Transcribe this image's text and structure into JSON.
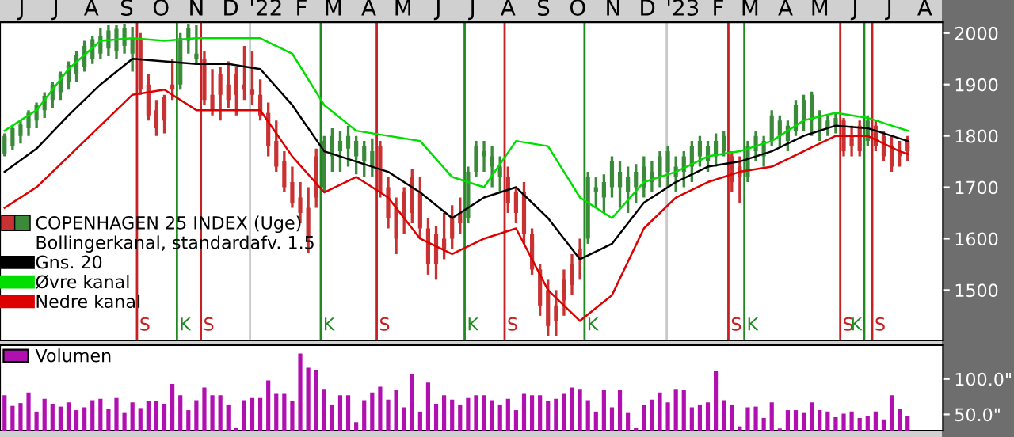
{
  "chart_data": [
    {
      "type": "candlestick",
      "title": "COPENHAGEN 25 INDEX (Uge)",
      "legend_title": "Bollingerkanal, standardafv. 1.5",
      "legend": "bottom left",
      "colors": [
        "#3a8a3a",
        "#3a8a3a",
        "#3a8a3a",
        "#3a8a3a",
        "#3a8a3a",
        "#3a8a3a",
        "#3a8a3a",
        "#3a8a3a",
        "#3a8a3a",
        "#3a8a3a",
        "#3a8a3a",
        "#3a8a3a",
        "#3a8a3a",
        "#3a8a3a",
        "#3a8a3a",
        "#3a8a3a",
        "#3a8a3a",
        "#c83232",
        "#c83232",
        "#c83232",
        "#c83232",
        "#c83232",
        "#3a8a3a",
        "#3a8a3a",
        "#3a8a3a",
        "#c83232",
        "#c83232",
        "#c83232",
        "#c83232",
        "#c83232",
        "#c83232",
        "#c83232",
        "#c83232",
        "#c83232",
        "#c83232",
        "#c83232",
        "#c83232",
        "#c83232",
        "#c83232",
        "#c83232",
        "#3a8a3a",
        "#3a8a3a",
        "#3a8a3a",
        "#3a8a3a",
        "#3a8a3a",
        "#3a8a3a",
        "#3a8a3a",
        "#c83232",
        "#c83232",
        "#c83232",
        "#c83232",
        "#c83232",
        "#c83232",
        "#c83232",
        "#c83232",
        "#c83232",
        "#c83232",
        "#c83232",
        "#3a8a3a",
        "#3a8a3a",
        "#3a8a3a",
        "#3a8a3a",
        "#3a8a3a",
        "#c83232",
        "#c83232",
        "#c83232",
        "#c83232",
        "#c83232",
        "#c83232",
        "#c83232",
        "#c83232",
        "#c83232",
        "#c83232",
        "#3a8a3a",
        "#3a8a3a",
        "#3a8a3a",
        "#3a8a3a",
        "#3a8a3a",
        "#3a8a3a",
        "#3a8a3a",
        "#3a8a3a",
        "#3a8a3a",
        "#3a8a3a",
        "#3a8a3a",
        "#3a8a3a",
        "#3a8a3a",
        "#3a8a3a",
        "#3a8a3a",
        "#3a8a3a",
        "#3a8a3a",
        "#3a8a3a",
        "#c83232",
        "#c83232",
        "#3a8a3a",
        "#3a8a3a",
        "#3a8a3a",
        "#3a8a3a",
        "#3a8a3a",
        "#3a8a3a",
        "#3a8a3a",
        "#3a8a3a",
        "#3a8a3a",
        "#3a8a3a",
        "#3a8a3a",
        "#3a8a3a",
        "#c83232",
        "#c83232",
        "#c83232",
        "#3a8a3a",
        "#c83232",
        "#c83232",
        "#c83232",
        "#c83232",
        "#c83232"
      ],
      "x": [
        "2021-05-31",
        "2021-06-07",
        "2021-06-14",
        "2021-06-21",
        "2021-06-28",
        "2021-07-05",
        "2021-07-12",
        "2021-07-19",
        "2021-07-26",
        "2021-08-02",
        "2021-08-09",
        "2021-08-16",
        "2021-08-23",
        "2021-08-30",
        "2021-09-06",
        "2021-09-13",
        "2021-09-20",
        "2021-09-27",
        "2021-10-04",
        "2021-10-11",
        "2021-10-18",
        "2021-10-25",
        "2021-11-01",
        "2021-11-08",
        "2021-11-15",
        "2021-11-22",
        "2021-11-29",
        "2021-12-06",
        "2021-12-13",
        "2021-12-20",
        "2021-12-27",
        "2022-01-03",
        "2022-01-10",
        "2022-01-17",
        "2022-01-24",
        "2022-01-31",
        "2022-02-07",
        "2022-02-14",
        "2022-02-21",
        "2022-02-28",
        "2022-03-07",
        "2022-03-14",
        "2022-03-21",
        "2022-03-28",
        "2022-04-04",
        "2022-04-11",
        "2022-04-18",
        "2022-04-25",
        "2022-05-02",
        "2022-05-09",
        "2022-05-16",
        "2022-05-23",
        "2022-05-30",
        "2022-06-06",
        "2022-06-13",
        "2022-06-20",
        "2022-06-27",
        "2022-07-04",
        "2022-07-11",
        "2022-07-18",
        "2022-07-25",
        "2022-08-01",
        "2022-08-08",
        "2022-08-15",
        "2022-08-22",
        "2022-08-29",
        "2022-09-05",
        "2022-09-12",
        "2022-09-19",
        "2022-09-26",
        "2022-10-03",
        "2022-10-10",
        "2022-10-17",
        "2022-10-24",
        "2022-10-31",
        "2022-11-07",
        "2022-11-14",
        "2022-11-21",
        "2022-11-28",
        "2022-12-05",
        "2022-12-12",
        "2022-12-19",
        "2022-12-26",
        "2023-01-02",
        "2023-01-09",
        "2023-01-16",
        "2023-01-23",
        "2023-01-30",
        "2023-02-06",
        "2023-02-13",
        "2023-02-20",
        "2023-02-27",
        "2023-03-06",
        "2023-03-13",
        "2023-03-20",
        "2023-03-27",
        "2023-04-03",
        "2023-04-10",
        "2023-04-17",
        "2023-04-24",
        "2023-05-01",
        "2023-05-08",
        "2023-05-15",
        "2023-05-22",
        "2023-05-29",
        "2023-06-05",
        "2023-06-12",
        "2023-06-19",
        "2023-06-26",
        "2023-07-03",
        "2023-07-10",
        "2023-07-17",
        "2023-07-24",
        "2023-07-31"
      ],
      "ohlc": [
        [
          1765,
          1805,
          1760,
          1800
        ],
        [
          1780,
          1820,
          1772,
          1815
        ],
        [
          1800,
          1830,
          1785,
          1822
        ],
        [
          1815,
          1850,
          1800,
          1845
        ],
        [
          1830,
          1865,
          1815,
          1860
        ],
        [
          1850,
          1885,
          1835,
          1878
        ],
        [
          1870,
          1905,
          1855,
          1900
        ],
        [
          1885,
          1925,
          1870,
          1920
        ],
        [
          1905,
          1945,
          1890,
          1938
        ],
        [
          1920,
          1965,
          1905,
          1958
        ],
        [
          1935,
          1985,
          1925,
          1975
        ],
        [
          1950,
          1995,
          1940,
          1988
        ],
        [
          1960,
          2010,
          1950,
          1995
        ],
        [
          1970,
          2015,
          1955,
          2005
        ],
        [
          1965,
          2015,
          1950,
          2008
        ],
        [
          1975,
          2018,
          1960,
          2010
        ],
        [
          1960,
          2012,
          1925,
          1990
        ],
        [
          1990,
          2000,
          1880,
          1890
        ],
        [
          1900,
          1920,
          1830,
          1840
        ],
        [
          1850,
          1870,
          1800,
          1815
        ],
        [
          1875,
          1880,
          1805,
          1830
        ],
        [
          1900,
          1950,
          1870,
          1890
        ],
        [
          1900,
          2000,
          1890,
          1990
        ],
        [
          1985,
          2018,
          1960,
          2010
        ],
        [
          1950,
          2015,
          1940,
          1960
        ],
        [
          1950,
          1965,
          1860,
          1870
        ],
        [
          1880,
          1930,
          1840,
          1850
        ],
        [
          1920,
          1935,
          1830,
          1880
        ],
        [
          1900,
          1945,
          1855,
          1870
        ],
        [
          1920,
          1935,
          1840,
          1880
        ],
        [
          1900,
          1975,
          1870,
          1890
        ],
        [
          1890,
          1965,
          1860,
          1880
        ],
        [
          1880,
          1910,
          1830,
          1840
        ],
        [
          1845,
          1865,
          1760,
          1780
        ],
        [
          1790,
          1830,
          1730,
          1740
        ],
        [
          1750,
          1770,
          1690,
          1700
        ],
        [
          1710,
          1740,
          1660,
          1670
        ],
        [
          1680,
          1710,
          1630,
          1650
        ],
        [
          1660,
          1700,
          1573,
          1600
        ],
        [
          1760,
          1775,
          1660,
          1680
        ],
        [
          1700,
          1800,
          1690,
          1790
        ],
        [
          1760,
          1815,
          1730,
          1800
        ],
        [
          1770,
          1810,
          1730,
          1790
        ],
        [
          1775,
          1820,
          1740,
          1800
        ],
        [
          1760,
          1800,
          1725,
          1790
        ],
        [
          1750,
          1790,
          1720,
          1780
        ],
        [
          1740,
          1795,
          1720,
          1770
        ],
        [
          1780,
          1790,
          1680,
          1690
        ],
        [
          1700,
          1720,
          1620,
          1640
        ],
        [
          1660,
          1680,
          1570,
          1600
        ],
        [
          1690,
          1700,
          1610,
          1640
        ],
        [
          1720,
          1735,
          1630,
          1650
        ],
        [
          1690,
          1720,
          1600,
          1620
        ],
        [
          1620,
          1640,
          1530,
          1550
        ],
        [
          1610,
          1625,
          1520,
          1550
        ],
        [
          1600,
          1650,
          1560,
          1580
        ],
        [
          1640,
          1665,
          1580,
          1600
        ],
        [
          1650,
          1680,
          1610,
          1630
        ],
        [
          1640,
          1740,
          1630,
          1730
        ],
        [
          1730,
          1790,
          1720,
          1780
        ],
        [
          1760,
          1790,
          1730,
          1770
        ],
        [
          1740,
          1780,
          1700,
          1760
        ],
        [
          1720,
          1760,
          1690,
          1740
        ],
        [
          1720,
          1740,
          1650,
          1670
        ],
        [
          1690,
          1700,
          1630,
          1650
        ],
        [
          1690,
          1710,
          1590,
          1610
        ],
        [
          1610,
          1620,
          1530,
          1540
        ],
        [
          1540,
          1550,
          1450,
          1470
        ],
        [
          1500,
          1520,
          1410,
          1430
        ],
        [
          1470,
          1500,
          1410,
          1440
        ],
        [
          1520,
          1540,
          1450,
          1480
        ],
        [
          1550,
          1570,
          1490,
          1510
        ],
        [
          1580,
          1600,
          1520,
          1560
        ],
        [
          1600,
          1730,
          1590,
          1720
        ],
        [
          1690,
          1720,
          1660,
          1700
        ],
        [
          1680,
          1725,
          1650,
          1710
        ],
        [
          1700,
          1760,
          1680,
          1750
        ],
        [
          1700,
          1750,
          1660,
          1730
        ],
        [
          1690,
          1740,
          1650,
          1720
        ],
        [
          1700,
          1745,
          1670,
          1730
        ],
        [
          1700,
          1760,
          1680,
          1740
        ],
        [
          1710,
          1750,
          1690,
          1730
        ],
        [
          1720,
          1770,
          1700,
          1760
        ],
        [
          1730,
          1780,
          1700,
          1770
        ],
        [
          1720,
          1760,
          1690,
          1740
        ],
        [
          1730,
          1770,
          1700,
          1760
        ],
        [
          1740,
          1790,
          1710,
          1780
        ],
        [
          1760,
          1800,
          1740,
          1790
        ],
        [
          1750,
          1790,
          1730,
          1780
        ],
        [
          1760,
          1805,
          1740,
          1790
        ],
        [
          1770,
          1810,
          1760,
          1800
        ],
        [
          1760,
          1770,
          1690,
          1710
        ],
        [
          1740,
          1760,
          1670,
          1720
        ],
        [
          1720,
          1790,
          1710,
          1780
        ],
        [
          1770,
          1810,
          1750,
          1800
        ],
        [
          1760,
          1800,
          1740,
          1790
        ],
        [
          1790,
          1850,
          1780,
          1840
        ],
        [
          1800,
          1840,
          1780,
          1830
        ],
        [
          1790,
          1830,
          1770,
          1820
        ],
        [
          1810,
          1870,
          1800,
          1860
        ],
        [
          1830,
          1880,
          1810,
          1870
        ],
        [
          1830,
          1886,
          1800,
          1880
        ],
        [
          1810,
          1850,
          1790,
          1840
        ],
        [
          1815,
          1840,
          1800,
          1830
        ],
        [
          1820,
          1845,
          1805,
          1835
        ],
        [
          1830,
          1835,
          1760,
          1770
        ],
        [
          1800,
          1820,
          1760,
          1780
        ],
        [
          1820,
          1830,
          1760,
          1770
        ],
        [
          1790,
          1840,
          1780,
          1830
        ],
        [
          1820,
          1830,
          1770,
          1780
        ],
        [
          1800,
          1810,
          1750,
          1760
        ],
        [
          1780,
          1800,
          1730,
          1740
        ],
        [
          1770,
          1790,
          1740,
          1760
        ],
        [
          1790,
          1800,
          1750,
          1770
        ]
      ],
      "series": [
        {
          "type": "line",
          "name": "Gns. 20",
          "color": "#000000",
          "x": [
            "2021-05-31",
            "2021-06-28",
            "2021-07-26",
            "2021-08-23",
            "2021-09-20",
            "2021-10-18",
            "2021-11-15",
            "2021-12-13",
            "2022-01-10",
            "2022-02-07",
            "2022-03-07",
            "2022-04-04",
            "2022-05-02",
            "2022-05-30",
            "2022-06-27",
            "2022-07-25",
            "2022-08-22",
            "2022-09-19",
            "2022-10-17",
            "2022-11-14",
            "2022-12-12",
            "2023-01-09",
            "2023-02-06",
            "2023-03-06",
            "2023-04-03",
            "2023-05-01",
            "2023-05-29",
            "2023-06-26",
            "2023-07-24",
            "2023-07-31"
          ],
          "values": [
            1730,
            1775,
            1840,
            1900,
            1950,
            1945,
            1940,
            1940,
            1930,
            1860,
            1770,
            1750,
            1730,
            1690,
            1640,
            1680,
            1700,
            1640,
            1560,
            1590,
            1670,
            1710,
            1740,
            1750,
            1770,
            1800,
            1820,
            1815,
            1795,
            1790
          ]
        },
        {
          "type": "line",
          "name": "Øvre kanal",
          "color": "#00dd00",
          "x": [
            "2021-05-31",
            "2021-06-28",
            "2021-07-26",
            "2021-08-23",
            "2021-09-20",
            "2021-10-18",
            "2021-11-15",
            "2021-12-13",
            "2022-01-10",
            "2022-02-07",
            "2022-03-07",
            "2022-04-04",
            "2022-05-02",
            "2022-05-30",
            "2022-06-27",
            "2022-07-25",
            "2022-08-22",
            "2022-09-19",
            "2022-10-17",
            "2022-11-14",
            "2022-12-12",
            "2023-01-09",
            "2023-02-06",
            "2023-03-06",
            "2023-04-03",
            "2023-05-01",
            "2023-05-29",
            "2023-06-26",
            "2023-07-24",
            "2023-07-31"
          ],
          "values": [
            1810,
            1850,
            1930,
            1985,
            1990,
            1985,
            1990,
            1990,
            1990,
            1960,
            1860,
            1810,
            1800,
            1790,
            1720,
            1700,
            1790,
            1780,
            1680,
            1640,
            1710,
            1730,
            1760,
            1770,
            1790,
            1830,
            1845,
            1835,
            1815,
            1810
          ]
        },
        {
          "type": "line",
          "name": "Nedre kanal",
          "color": "#dd0000",
          "x": [
            "2021-05-31",
            "2021-06-28",
            "2021-07-26",
            "2021-08-23",
            "2021-09-20",
            "2021-10-18",
            "2021-11-15",
            "2021-12-13",
            "2022-01-10",
            "2022-02-07",
            "2022-03-07",
            "2022-04-04",
            "2022-05-02",
            "2022-05-30",
            "2022-06-27",
            "2022-07-25",
            "2022-08-22",
            "2022-09-19",
            "2022-10-17",
            "2022-11-14",
            "2022-12-12",
            "2023-01-09",
            "2023-02-06",
            "2023-03-06",
            "2023-04-03",
            "2023-05-01",
            "2023-05-29",
            "2023-06-26",
            "2023-07-24",
            "2023-07-31"
          ],
          "values": [
            1660,
            1700,
            1760,
            1820,
            1880,
            1890,
            1850,
            1850,
            1850,
            1760,
            1690,
            1720,
            1680,
            1600,
            1570,
            1600,
            1620,
            1500,
            1440,
            1490,
            1620,
            1680,
            1710,
            1730,
            1740,
            1770,
            1800,
            1800,
            1770,
            1765
          ]
        }
      ],
      "ref_lines": [
        {
          "axis": "x",
          "value": "2022-01-01",
          "color": "#c8c8c8"
        },
        {
          "axis": "x",
          "value": "2023-01-01",
          "color": "#c8c8c8"
        },
        {
          "axis": "x",
          "value": "2021-09-24",
          "label": "S",
          "color": "#c82020"
        },
        {
          "axis": "x",
          "value": "2021-10-29",
          "label": "K",
          "color": "#208a20"
        },
        {
          "axis": "x",
          "value": "2021-11-19",
          "label": "S",
          "color": "#c82020"
        },
        {
          "axis": "x",
          "value": "2022-03-04",
          "label": "K",
          "color": "#208a20"
        },
        {
          "axis": "x",
          "value": "2022-04-22",
          "label": "S",
          "color": "#c82020"
        },
        {
          "axis": "x",
          "value": "2022-07-08",
          "label": "K",
          "color": "#208a20"
        },
        {
          "axis": "x",
          "value": "2022-08-12",
          "label": "S",
          "color": "#c82020"
        },
        {
          "axis": "x",
          "value": "2022-10-21",
          "label": "K",
          "color": "#208a20"
        },
        {
          "axis": "x",
          "value": "2023-02-24",
          "label": "S",
          "color": "#c82020"
        },
        {
          "axis": "x",
          "value": "2023-03-10",
          "label": "K",
          "color": "#208a20"
        },
        {
          "axis": "x",
          "value": "2023-06-02",
          "label": "S",
          "color": "#c82020"
        },
        {
          "axis": "x",
          "value": "2023-06-23",
          "label": "K",
          "color": "#208a20"
        },
        {
          "axis": "x",
          "value": "2023-06-30",
          "label": "S",
          "color": "#c82020"
        }
      ],
      "xlim": [
        "2021-05-27",
        "2023-08-31"
      ],
      "xticks": [
        {
          "value": "2021-06-15",
          "label": "J"
        },
        {
          "value": "2021-07-15",
          "label": "J"
        },
        {
          "value": "2021-08-15",
          "label": "A"
        },
        {
          "value": "2021-09-15",
          "label": "S"
        },
        {
          "value": "2021-10-15",
          "label": "O"
        },
        {
          "value": "2021-11-15",
          "label": "N"
        },
        {
          "value": "2021-12-15",
          "label": "D"
        },
        {
          "value": "2022-01-15",
          "label": "'22"
        },
        {
          "value": "2022-02-15",
          "label": "F"
        },
        {
          "value": "2022-03-15",
          "label": "M"
        },
        {
          "value": "2022-04-15",
          "label": "A"
        },
        {
          "value": "2022-05-15",
          "label": "M"
        },
        {
          "value": "2022-06-15",
          "label": "J"
        },
        {
          "value": "2022-07-15",
          "label": "J"
        },
        {
          "value": "2022-08-15",
          "label": "A"
        },
        {
          "value": "2022-09-15",
          "label": "S"
        },
        {
          "value": "2022-10-15",
          "label": "O"
        },
        {
          "value": "2022-11-15",
          "label": "N"
        },
        {
          "value": "2022-12-15",
          "label": "D"
        },
        {
          "value": "2023-01-15",
          "label": "'23"
        },
        {
          "value": "2023-02-15",
          "label": "F"
        },
        {
          "value": "2023-03-15",
          "label": "M"
        },
        {
          "value": "2023-04-15",
          "label": "A"
        },
        {
          "value": "2023-05-15",
          "label": "M"
        },
        {
          "value": "2023-06-15",
          "label": "J"
        },
        {
          "value": "2023-07-15",
          "label": "J"
        },
        {
          "value": "2023-08-15",
          "label": "A"
        }
      ],
      "ylim": [
        1402,
        2021
      ],
      "yticks": [
        1500,
        1600,
        1700,
        1800,
        1900,
        2000
      ]
    },
    {
      "type": "bar",
      "legend": "top left",
      "tick_labels": "y",
      "x": [
        "2021-05-31",
        "2021-06-07",
        "2021-06-14",
        "2021-06-21",
        "2021-06-28",
        "2021-07-05",
        "2021-07-12",
        "2021-07-19",
        "2021-07-26",
        "2021-08-02",
        "2021-08-09",
        "2021-08-16",
        "2021-08-23",
        "2021-08-30",
        "2021-09-06",
        "2021-09-13",
        "2021-09-20",
        "2021-09-27",
        "2021-10-04",
        "2021-10-11",
        "2021-10-18",
        "2021-10-25",
        "2021-11-01",
        "2021-11-08",
        "2021-11-15",
        "2021-11-22",
        "2021-11-29",
        "2021-12-06",
        "2021-12-13",
        "2021-12-20",
        "2021-12-27",
        "2022-01-03",
        "2022-01-10",
        "2022-01-17",
        "2022-01-24",
        "2022-01-31",
        "2022-02-07",
        "2022-02-14",
        "2022-02-21",
        "2022-02-28",
        "2022-03-07",
        "2022-03-14",
        "2022-03-21",
        "2022-03-28",
        "2022-04-04",
        "2022-04-11",
        "2022-04-18",
        "2022-04-25",
        "2022-05-02",
        "2022-05-09",
        "2022-05-16",
        "2022-05-23",
        "2022-05-30",
        "2022-06-06",
        "2022-06-13",
        "2022-06-20",
        "2022-06-27",
        "2022-07-04",
        "2022-07-11",
        "2022-07-18",
        "2022-07-25",
        "2022-08-01",
        "2022-08-08",
        "2022-08-15",
        "2022-08-22",
        "2022-08-29",
        "2022-09-05",
        "2022-09-12",
        "2022-09-19",
        "2022-09-26",
        "2022-10-03",
        "2022-10-10",
        "2022-10-17",
        "2022-10-24",
        "2022-10-31",
        "2022-11-07",
        "2022-11-14",
        "2022-11-21",
        "2022-11-28",
        "2022-12-05",
        "2022-12-12",
        "2022-12-19",
        "2022-12-26",
        "2023-01-02",
        "2023-01-09",
        "2023-01-16",
        "2023-01-23",
        "2023-01-30",
        "2023-02-06",
        "2023-02-13",
        "2023-02-20",
        "2023-02-27",
        "2023-03-06",
        "2023-03-13",
        "2023-03-20",
        "2023-03-27",
        "2023-04-03",
        "2023-04-10",
        "2023-04-17",
        "2023-04-24",
        "2023-05-01",
        "2023-05-08",
        "2023-05-15",
        "2023-05-22",
        "2023-05-29",
        "2023-06-05",
        "2023-06-12",
        "2023-06-19",
        "2023-06-26",
        "2023-07-03",
        "2023-07-10",
        "2023-07-17",
        "2023-07-24",
        "2023-07-31"
      ],
      "series": [
        {
          "name": "Volumen",
          "color": "#b010b0",
          "values": [
            77,
            62,
            66,
            81,
            54,
            72,
            65,
            61,
            67,
            56,
            60,
            70,
            72,
            58,
            73,
            52,
            67,
            59,
            69,
            69,
            65,
            93,
            77,
            56,
            70,
            88,
            77,
            77,
            64,
            31,
            70,
            73,
            73,
            98,
            79,
            79,
            69,
            136,
            116,
            113,
            86,
            64,
            77,
            77,
            39,
            70,
            81,
            89,
            71,
            84,
            60,
            107,
            54,
            95,
            65,
            77,
            71,
            64,
            73,
            77,
            77,
            70,
            64,
            72,
            56,
            79,
            77,
            77,
            69,
            72,
            79,
            88,
            86,
            70,
            54,
            84,
            60,
            84,
            52,
            31,
            63,
            71,
            81,
            67,
            86,
            84,
            60,
            64,
            67,
            111,
            70,
            64,
            33,
            60,
            61,
            45,
            67,
            30,
            56,
            56,
            52,
            67,
            56,
            54,
            46,
            51,
            54,
            45,
            48,
            54,
            43,
            77,
            58,
            48
          ]
        }
      ],
      "xlim": [
        "2021-05-27",
        "2023-08-31"
      ],
      "ylim": [
        27,
        148
      ],
      "yticks": [
        {
          "value": 50,
          "label": "50.0\""
        },
        {
          "value": 100,
          "label": "100.0\""
        }
      ]
    }
  ]
}
